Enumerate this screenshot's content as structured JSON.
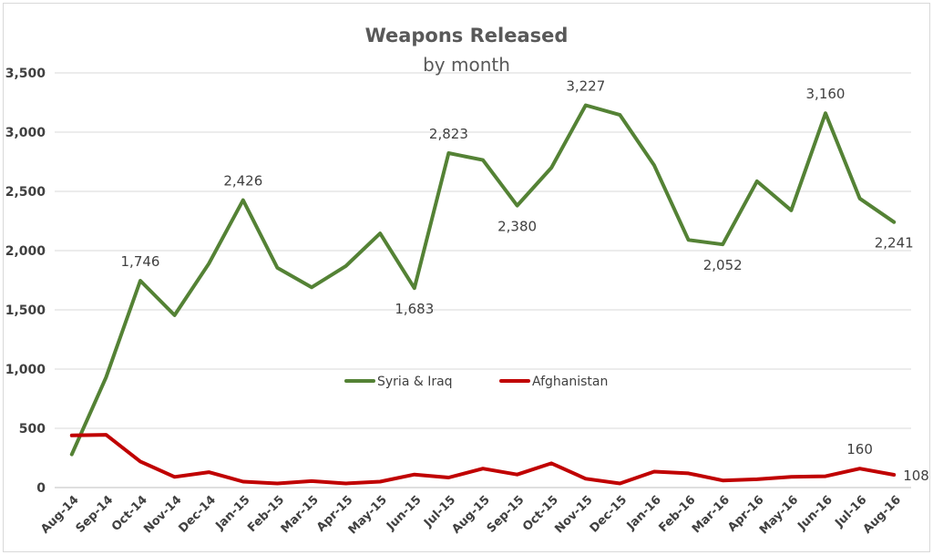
{
  "chart_data": {
    "type": "line",
    "title": "Weapons Released",
    "subtitle": "by month",
    "xlabel": "",
    "ylabel": "",
    "ylim": [
      0,
      3500
    ],
    "yticks": [
      0,
      500,
      1000,
      1500,
      2000,
      2500,
      3000,
      3500
    ],
    "ytick_labels": [
      "0",
      "500",
      "1,000",
      "1,500",
      "2,000",
      "2,500",
      "3,000",
      "3,500"
    ],
    "grid": true,
    "legend_position": "center",
    "categories": [
      "Aug-14",
      "Sep-14",
      "Oct-14",
      "Nov-14",
      "Dec-14",
      "Jan-15",
      "Feb-15",
      "Mar-15",
      "Apr-15",
      "May-15",
      "Jun-15",
      "Jul-15",
      "Aug-15",
      "Sep-15",
      "Oct-15",
      "Nov-15",
      "Dec-15",
      "Jan-16",
      "Feb-16",
      "Mar-16",
      "Apr-16",
      "May-16",
      "Jun-16",
      "Jul-16",
      "Aug-16"
    ],
    "series": [
      {
        "name": "Syria & Iraq",
        "color": "#548235",
        "values": [
          280,
          930,
          1746,
          1455,
          1890,
          2426,
          1855,
          1690,
          1870,
          2145,
          1683,
          2823,
          2765,
          2380,
          2700,
          3227,
          3145,
          2720,
          2090,
          2052,
          2585,
          2340,
          3160,
          2440,
          2241
        ],
        "labels": [
          {
            "index": 2,
            "text": "1,746",
            "pos": "above"
          },
          {
            "index": 5,
            "text": "2,426",
            "pos": "above"
          },
          {
            "index": 10,
            "text": "1,683",
            "pos": "below"
          },
          {
            "index": 11,
            "text": "2,823",
            "pos": "above"
          },
          {
            "index": 13,
            "text": "2,380",
            "pos": "below"
          },
          {
            "index": 15,
            "text": "3,227",
            "pos": "above"
          },
          {
            "index": 19,
            "text": "2,052",
            "pos": "below"
          },
          {
            "index": 22,
            "text": "3,160",
            "pos": "above"
          },
          {
            "index": 24,
            "text": "2,241",
            "pos": "below"
          }
        ]
      },
      {
        "name": "Afghanistan",
        "color": "#c00000",
        "values": [
          440,
          445,
          220,
          90,
          130,
          50,
          35,
          55,
          35,
          50,
          110,
          85,
          160,
          110,
          205,
          75,
          35,
          135,
          120,
          60,
          70,
          90,
          95,
          160,
          108
        ],
        "labels": [
          {
            "index": 23,
            "text": "160",
            "pos": "above"
          },
          {
            "index": 24,
            "text": "108",
            "pos": "right"
          }
        ]
      }
    ]
  }
}
